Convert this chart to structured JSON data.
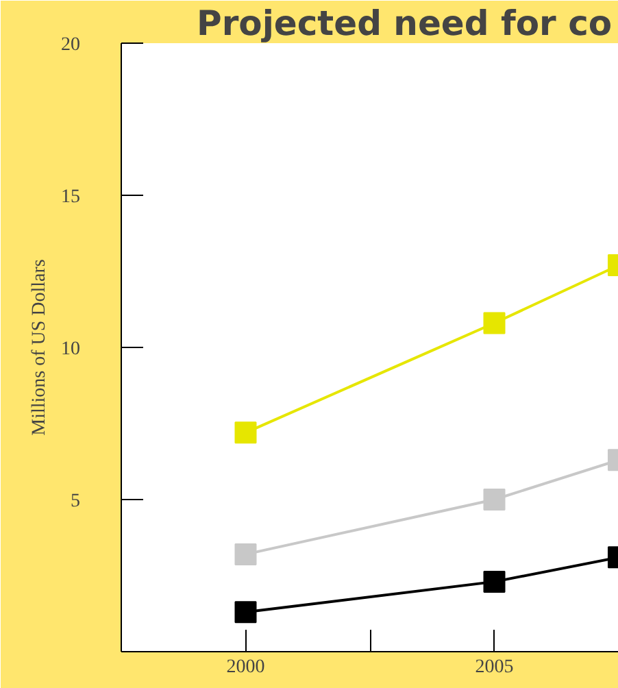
{
  "chart_data": {
    "type": "line",
    "title": "Projected need for co",
    "ylabel": "Millions of US Dollars",
    "x": [
      2000,
      2005,
      2007.5
    ],
    "series": [
      {
        "color": "#e6e600",
        "values": [
          7.2,
          10.8,
          12.7
        ]
      },
      {
        "color": "#c8c8c8",
        "values": [
          3.2,
          5.0,
          6.3
        ]
      },
      {
        "color": "#000000",
        "values": [
          1.3,
          2.3,
          3.1
        ]
      }
    ],
    "xlim": [
      1997.5,
      2007.5
    ],
    "ylim": [
      0,
      20
    ],
    "xticks": [
      2000,
      {
        "value": 2002.5,
        "label": null
      },
      2005
    ],
    "yticks": [
      5,
      10,
      15,
      20
    ],
    "grid": false,
    "marker": "square",
    "line_style": "solid"
  }
}
